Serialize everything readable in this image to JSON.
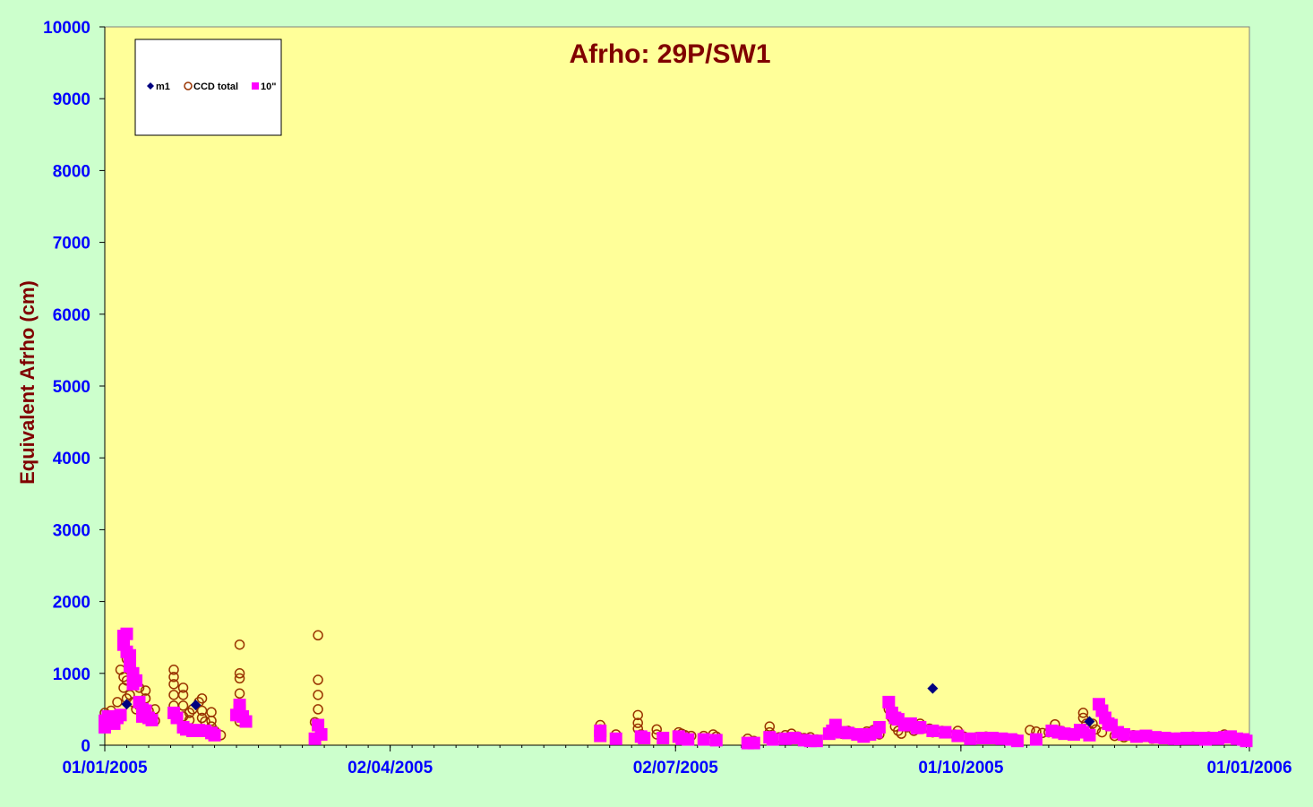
{
  "chart_data": {
    "type": "scatter",
    "title": "Afrho: 29P/SW1",
    "xlabel": "",
    "ylabel": "Equivalent Afrho (cm)",
    "ylim": [
      0,
      10000
    ],
    "yticks": [
      0,
      1000,
      2000,
      3000,
      4000,
      5000,
      6000,
      7000,
      8000,
      9000,
      10000
    ],
    "xlim": [
      "2005-01-01",
      "2006-01-01"
    ],
    "xtick_labels": [
      "01/01/2005",
      "02/04/2005",
      "02/07/2005",
      "01/10/2005",
      "01/01/2006"
    ],
    "xtick_dates": [
      "2005-01-01",
      "2005-04-02",
      "2005-07-02",
      "2005-10-01",
      "2006-01-01"
    ],
    "grid": false,
    "legend": "top-left",
    "colors": {
      "page_background": "#ccffcc",
      "plot_background": "#ffff99",
      "m1": "#000080",
      "ccd_total": "#993300",
      "ten_arcsec": "#ff00ff",
      "title": "#800000",
      "ticks": "#0000ff"
    },
    "series": [
      {
        "name": "m1",
        "marker": "diamond",
        "points": [
          [
            "2005-01-08",
            570
          ],
          [
            "2005-01-30",
            560
          ],
          [
            "2005-09-22",
            790
          ],
          [
            "2005-11-11",
            330
          ]
        ]
      },
      {
        "name": "CCD total",
        "marker": "open-circle",
        "points": [
          [
            "2005-01-01",
            450
          ],
          [
            "2005-01-03",
            480
          ],
          [
            "2005-01-05",
            600
          ],
          [
            "2005-01-06",
            1050
          ],
          [
            "2005-01-07",
            950
          ],
          [
            "2005-01-07",
            800
          ],
          [
            "2005-01-08",
            1200
          ],
          [
            "2005-01-08",
            900
          ],
          [
            "2005-01-08",
            650
          ],
          [
            "2005-01-09",
            1150
          ],
          [
            "2005-01-09",
            700
          ],
          [
            "2005-01-10",
            600
          ],
          [
            "2005-01-11",
            500
          ],
          [
            "2005-01-12",
            800
          ],
          [
            "2005-01-12",
            550
          ],
          [
            "2005-01-14",
            760
          ],
          [
            "2005-01-14",
            650
          ],
          [
            "2005-01-15",
            480
          ],
          [
            "2005-01-17",
            500
          ],
          [
            "2005-01-17",
            340
          ],
          [
            "2005-01-23",
            1050
          ],
          [
            "2005-01-23",
            950
          ],
          [
            "2005-01-23",
            850
          ],
          [
            "2005-01-23",
            700
          ],
          [
            "2005-01-23",
            550
          ],
          [
            "2005-01-26",
            800
          ],
          [
            "2005-01-26",
            700
          ],
          [
            "2005-01-26",
            550
          ],
          [
            "2005-01-26",
            400
          ],
          [
            "2005-01-28",
            450
          ],
          [
            "2005-01-28",
            350
          ],
          [
            "2005-01-29",
            500
          ],
          [
            "2005-01-31",
            600
          ],
          [
            "2005-02-01",
            650
          ],
          [
            "2005-02-01",
            480
          ],
          [
            "2005-02-01",
            380
          ],
          [
            "2005-02-02",
            330
          ],
          [
            "2005-02-04",
            460
          ],
          [
            "2005-02-04",
            340
          ],
          [
            "2005-02-04",
            260
          ],
          [
            "2005-02-05",
            200
          ],
          [
            "2005-02-07",
            140
          ],
          [
            "2005-02-13",
            1400
          ],
          [
            "2005-02-13",
            1000
          ],
          [
            "2005-02-13",
            930
          ],
          [
            "2005-02-13",
            720
          ],
          [
            "2005-02-13",
            520
          ],
          [
            "2005-02-13",
            330
          ],
          [
            "2005-02-14",
            380
          ],
          [
            "2005-03-10",
            1530
          ],
          [
            "2005-03-10",
            910
          ],
          [
            "2005-03-10",
            700
          ],
          [
            "2005-03-10",
            500
          ],
          [
            "2005-03-10",
            300
          ],
          [
            "2005-03-09",
            320
          ],
          [
            "2005-06-08",
            280
          ],
          [
            "2005-06-08",
            220
          ],
          [
            "2005-06-13",
            150
          ],
          [
            "2005-06-20",
            420
          ],
          [
            "2005-06-20",
            310
          ],
          [
            "2005-06-20",
            230
          ],
          [
            "2005-06-21",
            150
          ],
          [
            "2005-06-26",
            220
          ],
          [
            "2005-06-26",
            150
          ],
          [
            "2005-07-03",
            180
          ],
          [
            "2005-07-04",
            160
          ],
          [
            "2005-07-05",
            140
          ],
          [
            "2005-07-07",
            130
          ],
          [
            "2005-07-11",
            130
          ],
          [
            "2005-07-14",
            150
          ],
          [
            "2005-07-15",
            120
          ],
          [
            "2005-07-25",
            90
          ],
          [
            "2005-07-27",
            60
          ],
          [
            "2005-08-01",
            260
          ],
          [
            "2005-08-01",
            180
          ],
          [
            "2005-08-04",
            110
          ],
          [
            "2005-08-06",
            140
          ],
          [
            "2005-08-08",
            160
          ],
          [
            "2005-08-10",
            120
          ],
          [
            "2005-08-12",
            100
          ],
          [
            "2005-08-14",
            110
          ],
          [
            "2005-08-16",
            80
          ],
          [
            "2005-08-20",
            150
          ],
          [
            "2005-08-22",
            220
          ],
          [
            "2005-08-24",
            160
          ],
          [
            "2005-08-26",
            200
          ],
          [
            "2005-08-28",
            170
          ],
          [
            "2005-08-30",
            130
          ],
          [
            "2005-09-01",
            190
          ],
          [
            "2005-09-03",
            210
          ],
          [
            "2005-09-05",
            150
          ],
          [
            "2005-09-08",
            500
          ],
          [
            "2005-09-09",
            380
          ],
          [
            "2005-09-10",
            260
          ],
          [
            "2005-09-11",
            200
          ],
          [
            "2005-09-12",
            160
          ],
          [
            "2005-09-14",
            250
          ],
          [
            "2005-09-16",
            200
          ],
          [
            "2005-09-18",
            300
          ],
          [
            "2005-09-19",
            230
          ],
          [
            "2005-09-21",
            230
          ],
          [
            "2005-09-22",
            180
          ],
          [
            "2005-09-25",
            200
          ],
          [
            "2005-09-29",
            150
          ],
          [
            "2005-10-02",
            120
          ],
          [
            "2005-09-30",
            200
          ],
          [
            "2005-10-04",
            90
          ],
          [
            "2005-10-06",
            110
          ],
          [
            "2005-10-09",
            120
          ],
          [
            "2005-10-11",
            90
          ],
          [
            "2005-10-13",
            100
          ],
          [
            "2005-10-19",
            80
          ],
          [
            "2005-10-23",
            210
          ],
          [
            "2005-10-25",
            190
          ],
          [
            "2005-10-27",
            170
          ],
          [
            "2005-10-29",
            180
          ],
          [
            "2005-10-31",
            290
          ],
          [
            "2005-11-02",
            200
          ],
          [
            "2005-11-04",
            170
          ],
          [
            "2005-11-06",
            150
          ],
          [
            "2005-11-09",
            450
          ],
          [
            "2005-11-09",
            380
          ],
          [
            "2005-11-10",
            300
          ],
          [
            "2005-11-10",
            230
          ],
          [
            "2005-11-11",
            200
          ],
          [
            "2005-11-12",
            300
          ],
          [
            "2005-11-13",
            220
          ],
          [
            "2005-11-15",
            180
          ],
          [
            "2005-11-19",
            130
          ],
          [
            "2005-11-22",
            110
          ],
          [
            "2005-11-25",
            140
          ],
          [
            "2005-11-28",
            130
          ],
          [
            "2005-12-01",
            90
          ],
          [
            "2005-12-03",
            120
          ],
          [
            "2005-12-05",
            110
          ],
          [
            "2005-12-08",
            100
          ],
          [
            "2005-12-10",
            80
          ],
          [
            "2005-12-12",
            110
          ],
          [
            "2005-12-14",
            120
          ],
          [
            "2005-12-16",
            90
          ],
          [
            "2005-12-19",
            120
          ],
          [
            "2005-12-21",
            100
          ],
          [
            "2005-12-24",
            150
          ],
          [
            "2005-12-27",
            90
          ],
          [
            "2005-12-29",
            70
          ],
          [
            "2005-12-31",
            60
          ]
        ]
      },
      {
        "name": "10\"",
        "marker": "filled-square",
        "points": [
          [
            "2005-01-01",
            250
          ],
          [
            "2005-01-01",
            340
          ],
          [
            "2005-01-02",
            400
          ],
          [
            "2005-01-03",
            350
          ],
          [
            "2005-01-04",
            300
          ],
          [
            "2005-01-05",
            380
          ],
          [
            "2005-01-06",
            420
          ],
          [
            "2005-01-07",
            1520
          ],
          [
            "2005-01-07",
            1400
          ],
          [
            "2005-01-08",
            1550
          ],
          [
            "2005-01-08",
            1300
          ],
          [
            "2005-01-09",
            1250
          ],
          [
            "2005-01-09",
            1100
          ],
          [
            "2005-01-10",
            1000
          ],
          [
            "2005-01-10",
            850
          ],
          [
            "2005-01-11",
            900
          ],
          [
            "2005-01-12",
            600
          ],
          [
            "2005-01-13",
            500
          ],
          [
            "2005-01-13",
            400
          ],
          [
            "2005-01-14",
            480
          ],
          [
            "2005-01-15",
            380
          ],
          [
            "2005-01-16",
            350
          ],
          [
            "2005-01-23",
            450
          ],
          [
            "2005-01-24",
            380
          ],
          [
            "2005-01-26",
            250
          ],
          [
            "2005-01-27",
            220
          ],
          [
            "2005-01-29",
            200
          ],
          [
            "2005-01-31",
            210
          ],
          [
            "2005-02-02",
            200
          ],
          [
            "2005-02-04",
            170
          ],
          [
            "2005-02-05",
            140
          ],
          [
            "2005-02-12",
            420
          ],
          [
            "2005-02-13",
            560
          ],
          [
            "2005-02-13",
            480
          ],
          [
            "2005-02-14",
            400
          ],
          [
            "2005-02-15",
            330
          ],
          [
            "2005-03-09",
            90
          ],
          [
            "2005-03-10",
            280
          ],
          [
            "2005-03-11",
            150
          ],
          [
            "2005-06-08",
            200
          ],
          [
            "2005-06-08",
            130
          ],
          [
            "2005-06-13",
            90
          ],
          [
            "2005-06-21",
            120
          ],
          [
            "2005-06-22",
            100
          ],
          [
            "2005-06-28",
            100
          ],
          [
            "2005-07-03",
            120
          ],
          [
            "2005-07-04",
            90
          ],
          [
            "2005-07-06",
            80
          ],
          [
            "2005-07-11",
            80
          ],
          [
            "2005-07-15",
            70
          ],
          [
            "2005-07-25",
            30
          ],
          [
            "2005-07-27",
            30
          ],
          [
            "2005-08-01",
            110
          ],
          [
            "2005-08-02",
            80
          ],
          [
            "2005-08-06",
            90
          ],
          [
            "2005-08-09",
            100
          ],
          [
            "2005-08-12",
            70
          ],
          [
            "2005-08-14",
            60
          ],
          [
            "2005-08-16",
            60
          ],
          [
            "2005-08-20",
            160
          ],
          [
            "2005-08-21",
            200
          ],
          [
            "2005-08-22",
            280
          ],
          [
            "2005-08-24",
            180
          ],
          [
            "2005-08-26",
            170
          ],
          [
            "2005-08-29",
            150
          ],
          [
            "2005-08-31",
            120
          ],
          [
            "2005-09-02",
            150
          ],
          [
            "2005-09-04",
            180
          ],
          [
            "2005-09-05",
            250
          ],
          [
            "2005-09-08",
            600
          ],
          [
            "2005-09-09",
            450
          ],
          [
            "2005-09-10",
            380
          ],
          [
            "2005-09-11",
            360
          ],
          [
            "2005-09-13",
            280
          ],
          [
            "2005-09-15",
            300
          ],
          [
            "2005-09-17",
            240
          ],
          [
            "2005-09-18",
            250
          ],
          [
            "2005-09-22",
            200
          ],
          [
            "2005-09-26",
            180
          ],
          [
            "2005-09-30",
            130
          ],
          [
            "2005-10-04",
            90
          ],
          [
            "2005-10-08",
            100
          ],
          [
            "2005-10-11",
            100
          ],
          [
            "2005-10-14",
            90
          ],
          [
            "2005-10-17",
            80
          ],
          [
            "2005-10-19",
            60
          ],
          [
            "2005-10-25",
            80
          ],
          [
            "2005-10-30",
            200
          ],
          [
            "2005-11-01",
            180
          ],
          [
            "2005-11-03",
            160
          ],
          [
            "2005-11-06",
            150
          ],
          [
            "2005-11-08",
            210
          ],
          [
            "2005-11-09",
            180
          ],
          [
            "2005-11-11",
            140
          ],
          [
            "2005-11-14",
            570
          ],
          [
            "2005-11-15",
            480
          ],
          [
            "2005-11-16",
            380
          ],
          [
            "2005-11-17",
            300
          ],
          [
            "2005-11-18",
            280
          ],
          [
            "2005-11-20",
            180
          ],
          [
            "2005-11-22",
            150
          ],
          [
            "2005-11-26",
            120
          ],
          [
            "2005-11-29",
            130
          ],
          [
            "2005-12-02",
            110
          ],
          [
            "2005-12-05",
            100
          ],
          [
            "2005-12-08",
            90
          ],
          [
            "2005-12-10",
            90
          ],
          [
            "2005-12-12",
            100
          ],
          [
            "2005-12-14",
            90
          ],
          [
            "2005-12-16",
            100
          ],
          [
            "2005-12-18",
            80
          ],
          [
            "2005-12-20",
            100
          ],
          [
            "2005-12-22",
            90
          ],
          [
            "2005-12-24",
            110
          ],
          [
            "2005-12-26",
            120
          ],
          [
            "2005-12-28",
            90
          ],
          [
            "2005-12-30",
            80
          ],
          [
            "2005-12-31",
            60
          ]
        ]
      }
    ]
  }
}
